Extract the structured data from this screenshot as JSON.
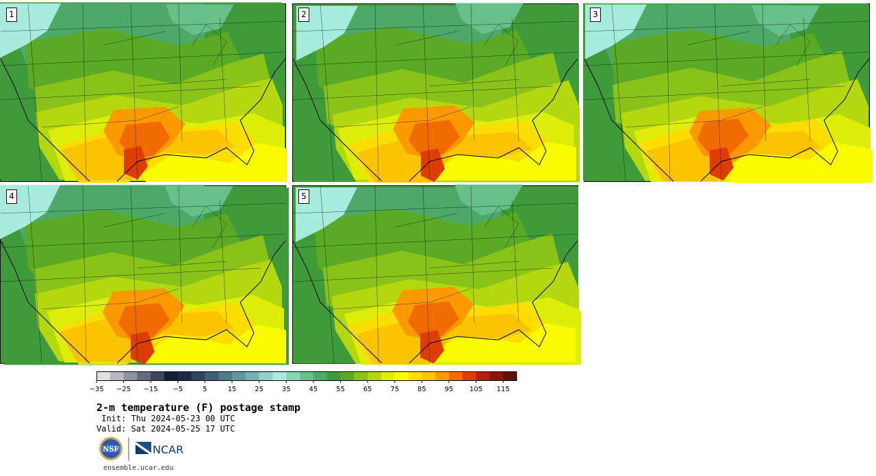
{
  "map_panels": [
    {
      "label": "1"
    },
    {
      "label": "2"
    },
    {
      "label": "3"
    },
    {
      "label": "4"
    },
    {
      "label": "5"
    }
  ],
  "colorbar": {
    "levels": [
      -35,
      -30,
      -25,
      -20,
      -15,
      -10,
      -5,
      0,
      5,
      10,
      15,
      20,
      25,
      30,
      35,
      40,
      45,
      50,
      55,
      60,
      65,
      70,
      75,
      80,
      85,
      90,
      95,
      100,
      105,
      110,
      115,
      120
    ],
    "tick_labels": [
      "−35",
      "−25",
      "−15",
      "−5",
      "5",
      "15",
      "25",
      "35",
      "45",
      "55",
      "65",
      "75",
      "85",
      "95",
      "105",
      "115"
    ],
    "colors": [
      "#e0e0e0",
      "#b8b8bf",
      "#8e919e",
      "#656b7e",
      "#3c4661",
      "#141f36",
      "#1c2c45",
      "#2e4560",
      "#3f5f78",
      "#4f7a8d",
      "#6196a2",
      "#79b2b6",
      "#92d1cb",
      "#a6ebdb",
      "#86d6b0",
      "#67c08a",
      "#4ca968",
      "#3f9a3a",
      "#5aaa25",
      "#89c218",
      "#b3d80f",
      "#dcee09",
      "#fbfb00",
      "#fbde00",
      "#fbc400",
      "#fa9900",
      "#f06b00",
      "#dd3e00",
      "#b5200a",
      "#8a1508",
      "#5c1206"
    ]
  },
  "caption": {
    "title": "2-m temperature (F) postage stamp",
    "init": " Init: Thu 2024-05-23 00 UTC",
    "valid": "Valid: Sat 2024-05-25 17 UTC"
  },
  "logos": {
    "nsf": "NSF",
    "ncar": "NCAR"
  },
  "footer": {
    "url": "ensemble.ucar.edu"
  }
}
